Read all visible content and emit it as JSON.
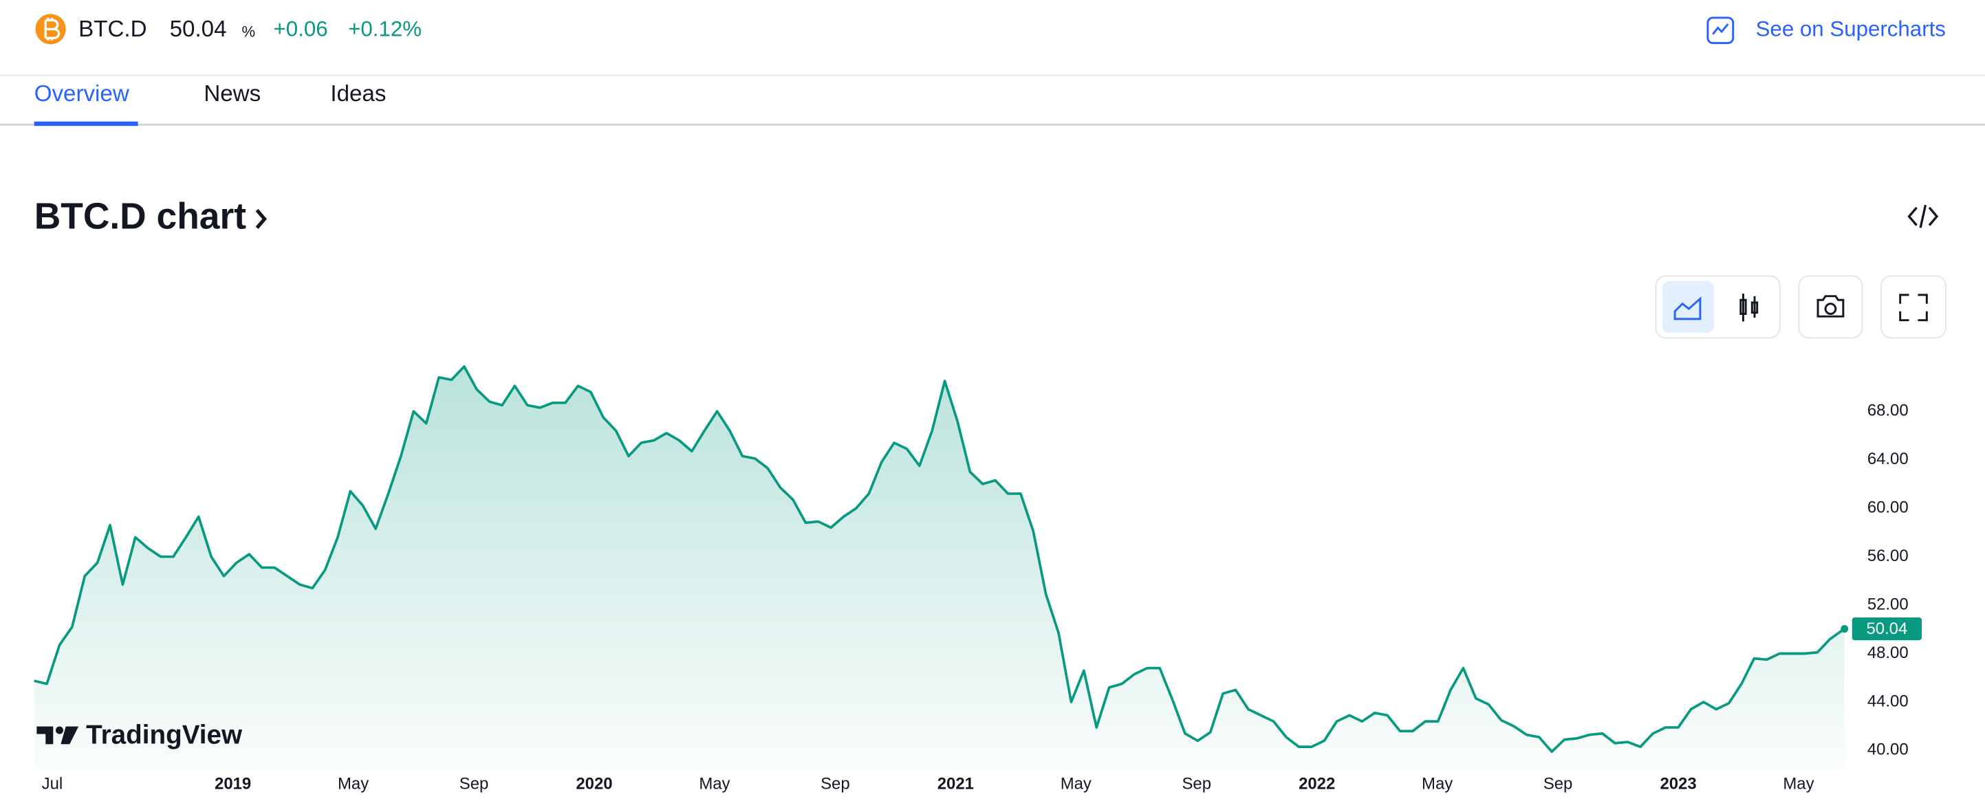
{
  "header": {
    "symbol": "BTC.D",
    "price": "50.04",
    "unit": "%",
    "change": "+0.06",
    "change_percent": "+0.12%",
    "link": "See on Supercharts"
  },
  "tabs": [
    "Overview",
    "News",
    "Ideas"
  ],
  "section_title": "BTC.D chart",
  "watermark": "TradingView",
  "chart_data": {
    "type": "area",
    "color": "#089981",
    "x": [
      2018.45,
      2018.485,
      2018.52,
      2018.555,
      2018.59,
      2018.625,
      2018.66,
      2018.695,
      2018.73,
      2018.765,
      2018.8,
      2018.835,
      2018.87,
      2018.905,
      2018.94,
      2018.975,
      2019.01,
      2019.045,
      2019.08,
      2019.115,
      2019.15,
      2019.185,
      2019.22,
      2019.255,
      2019.29,
      2019.325,
      2019.36,
      2019.395,
      2019.43,
      2019.465,
      2019.5,
      2019.535,
      2019.57,
      2019.605,
      2019.64,
      2019.675,
      2019.71,
      2019.745,
      2019.78,
      2019.815,
      2019.85,
      2019.885,
      2019.92,
      2019.955,
      2019.99,
      2020.025,
      2020.06,
      2020.095,
      2020.13,
      2020.165,
      2020.2,
      2020.235,
      2020.27,
      2020.305,
      2020.34,
      2020.375,
      2020.41,
      2020.445,
      2020.48,
      2020.515,
      2020.55,
      2020.585,
      2020.62,
      2020.655,
      2020.69,
      2020.725,
      2020.76,
      2020.795,
      2020.83,
      2020.865,
      2020.9,
      2020.935,
      2020.97,
      2021.005,
      2021.04,
      2021.075,
      2021.11,
      2021.145,
      2021.18,
      2021.215,
      2021.25,
      2021.285,
      2021.32,
      2021.355,
      2021.39,
      2021.425,
      2021.46,
      2021.495,
      2021.53,
      2021.565,
      2021.6,
      2021.635,
      2021.67,
      2021.705,
      2021.74,
      2021.775,
      2021.81,
      2021.845,
      2021.88,
      2021.915,
      2021.95,
      2021.985,
      2022.02,
      2022.055,
      2022.09,
      2022.125,
      2022.16,
      2022.195,
      2022.23,
      2022.265,
      2022.3,
      2022.335,
      2022.37,
      2022.405,
      2022.44,
      2022.475,
      2022.51,
      2022.545,
      2022.58,
      2022.615,
      2022.65,
      2022.685,
      2022.72,
      2022.755,
      2022.79,
      2022.825,
      2022.86,
      2022.895,
      2022.93,
      2022.965,
      2023.0,
      2023.035,
      2023.07,
      2023.105,
      2023.14,
      2023.175,
      2023.21,
      2023.245,
      2023.28,
      2023.315,
      2023.35,
      2023.385,
      2023.42,
      2023.46
    ],
    "values": [
      45.75,
      45.5,
      48.7,
      50.2,
      54.4,
      55.5,
      58.6,
      53.7,
      57.6,
      56.7,
      56.0,
      56.0,
      57.6,
      59.3,
      56.0,
      54.4,
      55.5,
      56.2,
      55.1,
      55.1,
      54.4,
      53.7,
      53.4,
      54.9,
      57.6,
      61.4,
      60.2,
      58.3,
      61.2,
      64.3,
      68.0,
      67.0,
      70.8,
      70.6,
      71.7,
      69.8,
      68.8,
      68.5,
      70.1,
      68.5,
      68.3,
      68.7,
      68.7,
      70.1,
      69.6,
      67.5,
      66.4,
      64.3,
      65.4,
      65.6,
      66.2,
      65.6,
      64.7,
      66.4,
      68.0,
      66.4,
      64.3,
      64.1,
      63.3,
      61.7,
      60.7,
      58.8,
      58.9,
      58.4,
      59.3,
      60.0,
      61.2,
      63.8,
      65.4,
      64.9,
      63.5,
      66.4,
      70.5,
      67.2,
      63.0,
      62.0,
      62.3,
      61.2,
      61.2,
      58.1,
      52.9,
      49.7,
      44.0,
      46.6,
      41.9,
      45.2,
      45.5,
      46.3,
      46.8,
      46.8,
      44.2,
      41.4,
      40.8,
      41.5,
      44.7,
      45.0,
      43.4,
      42.9,
      42.4,
      41.1,
      40.3,
      40.3,
      40.8,
      42.4,
      42.9,
      42.4,
      43.1,
      42.9,
      41.6,
      41.6,
      42.4,
      42.4,
      45.0,
      46.8,
      44.3,
      43.8,
      42.5,
      42.0,
      41.3,
      41.1,
      39.9,
      40.9,
      41.0,
      41.3,
      41.4,
      40.6,
      40.7,
      40.3,
      41.4,
      41.9,
      41.9,
      43.4,
      44.0,
      43.4,
      43.9,
      45.5,
      47.6,
      47.5,
      48.0,
      48.0,
      48.0,
      48.1,
      49.2,
      50.04
    ],
    "xlim": [
      2018.45,
      2023.46
    ],
    "ylim": [
      38.43,
      72.7
    ],
    "xticks": [
      {
        "value": 2018.5,
        "label": "Jul"
      },
      2019,
      {
        "value": 2019.333,
        "label": "May"
      },
      {
        "value": 2019.667,
        "label": "Sep"
      },
      2020,
      {
        "value": 2020.333,
        "label": "May"
      },
      {
        "value": 2020.667,
        "label": "Sep"
      },
      2021,
      {
        "value": 2021.333,
        "label": "May"
      },
      {
        "value": 2021.667,
        "label": "Sep"
      },
      2022,
      {
        "value": 2022.333,
        "label": "May"
      },
      {
        "value": 2022.667,
        "label": "Sep"
      },
      2023,
      {
        "value": 2023.333,
        "label": "May"
      }
    ],
    "yticks": [
      {
        "value": 40,
        "label": "40.00"
      },
      {
        "value": 44,
        "label": "44.00"
      },
      {
        "value": 48,
        "label": "48.00"
      },
      {
        "value": 52,
        "label": "52.00"
      },
      {
        "value": 56,
        "label": "56.00"
      },
      {
        "value": 60,
        "label": "60.00"
      },
      {
        "value": 64,
        "label": "64.00"
      },
      {
        "value": 68,
        "label": "68.00"
      }
    ],
    "grid": false
  }
}
